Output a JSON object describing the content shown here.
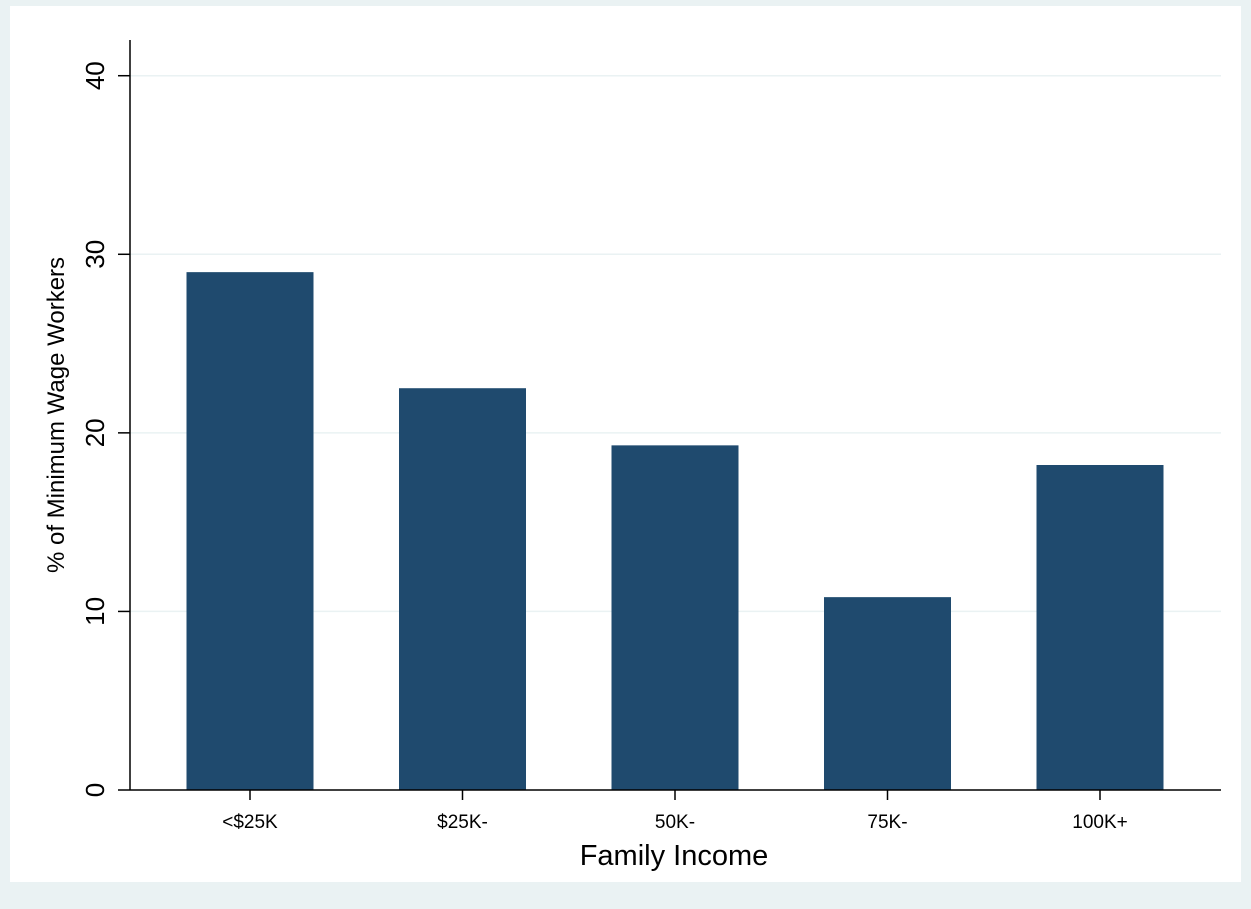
{
  "chart_data": {
    "type": "bar",
    "categories": [
      "<$25K",
      "$25K-",
      "50K-",
      "75K-",
      "100K+"
    ],
    "values": [
      29.0,
      22.5,
      19.3,
      10.8,
      18.2
    ],
    "xlabel": "Family Income",
    "ylabel": "% of Minimum Wage Workers",
    "ylim": [
      0,
      42
    ],
    "yticks": [
      0,
      10,
      20,
      30,
      40
    ],
    "grid": true,
    "legend": "none",
    "bar_color": "#1f4a6e",
    "grid_color": "#eaf2f3",
    "outer_background": "#eaf2f3",
    "plot_background": "#ffffff"
  }
}
